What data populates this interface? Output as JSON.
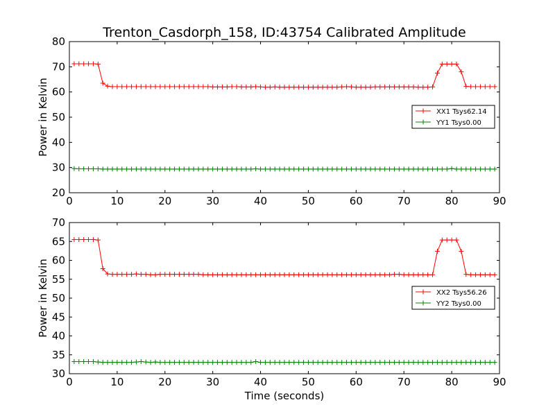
{
  "title": "Trenton_Casdorph_158, ID:43754 Calibrated Amplitude",
  "colors": {
    "xx": "#ff0000",
    "yy": "#008000"
  },
  "chart_data": [
    {
      "type": "line",
      "xlabel": "",
      "ylabel": "Power in Kelvin",
      "xlim": [
        0,
        90
      ],
      "ylim": [
        20,
        80
      ],
      "xticks": [
        0,
        10,
        20,
        30,
        40,
        50,
        60,
        70,
        80,
        90
      ],
      "yticks": [
        20,
        30,
        40,
        50,
        60,
        70,
        80
      ],
      "grid": false,
      "legend_position": "right",
      "x": [
        1,
        2,
        3,
        4,
        5,
        6,
        7,
        8,
        9,
        10,
        11,
        12,
        13,
        14,
        15,
        16,
        17,
        18,
        19,
        20,
        21,
        22,
        23,
        24,
        25,
        26,
        27,
        28,
        29,
        30,
        31,
        32,
        33,
        34,
        35,
        36,
        37,
        38,
        39,
        40,
        41,
        42,
        43,
        44,
        45,
        46,
        47,
        48,
        49,
        50,
        51,
        52,
        53,
        54,
        55,
        56,
        57,
        58,
        59,
        60,
        61,
        62,
        63,
        64,
        65,
        66,
        67,
        68,
        69,
        70,
        71,
        72,
        73,
        74,
        75,
        76,
        77,
        78,
        79,
        80,
        81,
        82,
        83,
        84,
        85,
        86,
        87,
        88,
        89
      ],
      "series": [
        {
          "name": "XX1 Tsys62.14",
          "color": "#ff0000",
          "values": [
            71.2,
            71.2,
            71.2,
            71.2,
            71.2,
            71.1,
            63.5,
            62.3,
            62.1,
            62.1,
            62.1,
            62.1,
            62.1,
            62.1,
            62.1,
            62.1,
            62.1,
            62.1,
            62.1,
            62.1,
            62.1,
            62.1,
            62.1,
            62.1,
            62.1,
            62.1,
            62.1,
            62.1,
            62.1,
            62.0,
            62.0,
            62.0,
            62.0,
            62.1,
            62.1,
            62.0,
            62.0,
            62.0,
            62.1,
            62.0,
            61.9,
            61.9,
            62.0,
            61.9,
            61.9,
            61.9,
            61.9,
            61.9,
            61.9,
            61.9,
            61.9,
            61.9,
            61.9,
            61.9,
            61.9,
            61.9,
            62.0,
            62.1,
            62.0,
            61.9,
            61.9,
            61.9,
            61.9,
            62.0,
            62.0,
            62.0,
            62.0,
            62.0,
            62.0,
            62.0,
            62.0,
            62.0,
            61.9,
            61.9,
            61.9,
            62.0,
            67.5,
            71.1,
            71.1,
            71.1,
            71.1,
            68.0,
            62.2,
            62.1,
            62.1,
            62.1,
            62.1,
            62.1,
            62.1
          ]
        },
        {
          "name": "YY1 Tsys0.00",
          "color": "#008000",
          "values": [
            29.6,
            29.5,
            29.5,
            29.5,
            29.5,
            29.5,
            29.4,
            29.4,
            29.4,
            29.4,
            29.4,
            29.4,
            29.4,
            29.4,
            29.4,
            29.4,
            29.4,
            29.4,
            29.4,
            29.4,
            29.4,
            29.4,
            29.4,
            29.4,
            29.4,
            29.4,
            29.4,
            29.4,
            29.4,
            29.4,
            29.4,
            29.4,
            29.4,
            29.4,
            29.4,
            29.4,
            29.4,
            29.4,
            29.5,
            29.4,
            29.4,
            29.4,
            29.4,
            29.4,
            29.4,
            29.4,
            29.4,
            29.4,
            29.4,
            29.4,
            29.4,
            29.4,
            29.4,
            29.4,
            29.4,
            29.4,
            29.4,
            29.4,
            29.4,
            29.4,
            29.4,
            29.4,
            29.4,
            29.4,
            29.4,
            29.4,
            29.4,
            29.4,
            29.4,
            29.4,
            29.4,
            29.4,
            29.4,
            29.4,
            29.4,
            29.4,
            29.4,
            29.4,
            29.4,
            29.6,
            29.4,
            29.4,
            29.4,
            29.4,
            29.4,
            29.4,
            29.4,
            29.4,
            29.4
          ]
        }
      ]
    },
    {
      "type": "line",
      "xlabel": "Time (seconds)",
      "ylabel": "Power in Kelvin",
      "xlim": [
        0,
        90
      ],
      "ylim": [
        30,
        70
      ],
      "xticks": [
        0,
        10,
        20,
        30,
        40,
        50,
        60,
        70,
        80,
        90
      ],
      "yticks": [
        30,
        35,
        40,
        45,
        50,
        55,
        60,
        65,
        70
      ],
      "grid": false,
      "legend_position": "right",
      "x": [
        1,
        2,
        3,
        4,
        5,
        6,
        7,
        8,
        9,
        10,
        11,
        12,
        13,
        14,
        15,
        16,
        17,
        18,
        19,
        20,
        21,
        22,
        23,
        24,
        25,
        26,
        27,
        28,
        29,
        30,
        31,
        32,
        33,
        34,
        35,
        36,
        37,
        38,
        39,
        40,
        41,
        42,
        43,
        44,
        45,
        46,
        47,
        48,
        49,
        50,
        51,
        52,
        53,
        54,
        55,
        56,
        57,
        58,
        59,
        60,
        61,
        62,
        63,
        64,
        65,
        66,
        67,
        68,
        69,
        70,
        71,
        72,
        73,
        74,
        75,
        76,
        77,
        78,
        79,
        80,
        81,
        82,
        83,
        84,
        85,
        86,
        87,
        88,
        89
      ],
      "series": [
        {
          "name": "XX2 Tsys56.26",
          "color": "#ff0000",
          "values": [
            65.5,
            65.5,
            65.5,
            65.5,
            65.5,
            65.4,
            57.8,
            56.4,
            56.3,
            56.3,
            56.3,
            56.3,
            56.3,
            56.4,
            56.3,
            56.3,
            56.2,
            56.2,
            56.3,
            56.3,
            56.3,
            56.3,
            56.3,
            56.3,
            56.3,
            56.3,
            56.3,
            56.2,
            56.2,
            56.2,
            56.2,
            56.2,
            56.2,
            56.2,
            56.2,
            56.2,
            56.2,
            56.2,
            56.2,
            56.2,
            56.2,
            56.2,
            56.2,
            56.2,
            56.2,
            56.2,
            56.2,
            56.2,
            56.2,
            56.2,
            56.2,
            56.2,
            56.2,
            56.2,
            56.2,
            56.2,
            56.2,
            56.2,
            56.2,
            56.2,
            56.2,
            56.2,
            56.2,
            56.2,
            56.2,
            56.2,
            56.2,
            56.3,
            56.3,
            56.2,
            56.2,
            56.2,
            56.2,
            56.2,
            56.2,
            56.2,
            62.4,
            65.4,
            65.4,
            65.4,
            65.4,
            62.4,
            56.3,
            56.2,
            56.2,
            56.2,
            56.2,
            56.2,
            56.2
          ]
        },
        {
          "name": "YY2 Tsys0.00",
          "color": "#008000",
          "values": [
            33.2,
            33.2,
            33.2,
            33.2,
            33.2,
            33.1,
            33.0,
            33.0,
            33.0,
            33.0,
            33.0,
            33.0,
            33.0,
            33.1,
            33.2,
            33.1,
            33.0,
            33.1,
            33.0,
            33.0,
            33.0,
            33.0,
            33.0,
            33.0,
            33.0,
            33.0,
            33.0,
            33.0,
            33.0,
            33.0,
            33.0,
            33.0,
            33.0,
            33.0,
            33.0,
            33.0,
            33.0,
            33.0,
            33.2,
            33.0,
            33.0,
            33.0,
            33.0,
            33.0,
            33.0,
            33.0,
            33.0,
            33.0,
            33.0,
            33.0,
            33.0,
            33.0,
            33.0,
            33.0,
            33.0,
            33.0,
            33.0,
            33.0,
            33.0,
            33.0,
            33.0,
            33.0,
            33.0,
            33.0,
            33.0,
            33.0,
            33.0,
            33.0,
            33.0,
            33.0,
            33.0,
            33.0,
            33.0,
            33.0,
            33.0,
            33.0,
            33.0,
            33.0,
            33.0,
            33.0,
            33.0,
            33.0,
            33.0,
            33.0,
            33.0,
            33.0,
            33.0,
            33.0,
            33.0
          ]
        }
      ]
    }
  ]
}
